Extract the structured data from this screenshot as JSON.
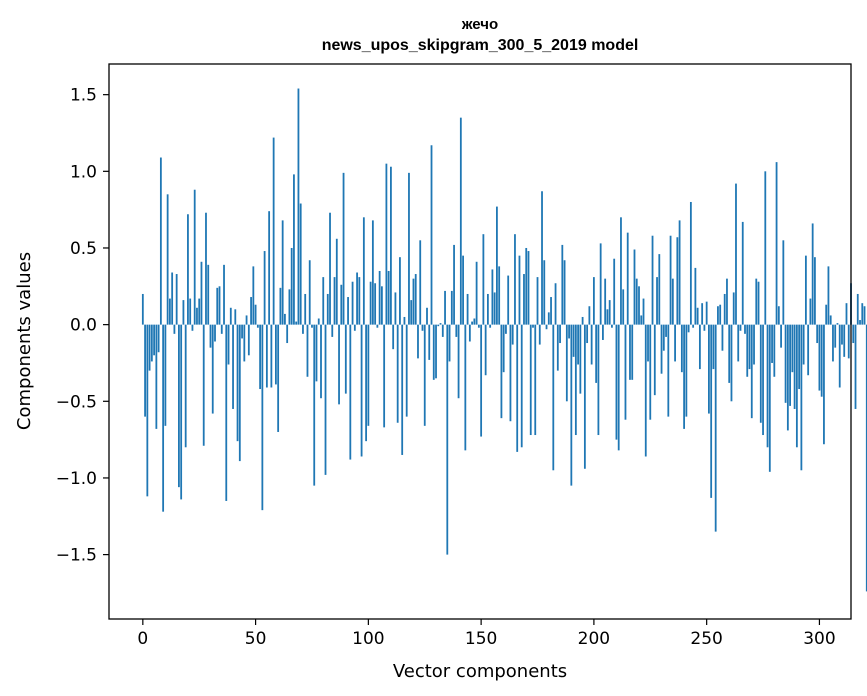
{
  "chart_data": {
    "type": "bar",
    "title": "жечо",
    "subtitle": "news_upos_skipgram_300_5_2019 model",
    "xlabel": "Vector components",
    "ylabel": "Components values",
    "xlim": [
      -15,
      314
    ],
    "ylim": [
      -1.92,
      1.7
    ],
    "xticks": [
      0,
      50,
      100,
      150,
      200,
      250,
      300
    ],
    "xtick_labels": [
      "0",
      "50",
      "100",
      "150",
      "200",
      "250",
      "300"
    ],
    "yticks": [
      -1.5,
      -1.0,
      -0.5,
      0.0,
      0.5,
      1.0,
      1.5
    ],
    "ytick_labels": [
      "−1.5",
      "−1.0",
      "−0.5",
      "0.0",
      "0.5",
      "1.0",
      "1.5"
    ],
    "grid": false,
    "bar_color": "#1f77b4",
    "values": [
      0.2,
      -0.6,
      -1.12,
      -0.3,
      -0.24,
      -0.2,
      -0.68,
      -0.18,
      1.09,
      -1.22,
      -0.66,
      0.85,
      0.17,
      0.34,
      -0.06,
      0.33,
      -1.06,
      -1.14,
      0.16,
      -0.8,
      0.72,
      0.17,
      -0.04,
      0.88,
      0.11,
      0.17,
      0.41,
      -0.79,
      0.73,
      0.39,
      -0.15,
      -0.58,
      -0.11,
      0.24,
      0.25,
      -0.06,
      0.39,
      -1.15,
      -0.26,
      0.11,
      -0.55,
      0.1,
      -0.76,
      -0.89,
      -0.09,
      -0.24,
      0.06,
      -0.2,
      0.18,
      0.38,
      0.13,
      -0.02,
      -0.42,
      -1.21,
      0.48,
      -0.41,
      0.74,
      -0.41,
      1.22,
      -0.39,
      -0.7,
      0.24,
      0.68,
      0.07,
      -0.12,
      0.23,
      0.5,
      0.98,
      0.02,
      1.54,
      0.79,
      -0.06,
      0.2,
      -0.34,
      0.42,
      -0.02,
      -1.05,
      -0.37,
      0.04,
      -0.48,
      0.31,
      -0.98,
      0.2,
      0.73,
      -0.08,
      0.31,
      0.56,
      -0.52,
      0.26,
      0.99,
      -0.45,
      0.18,
      -0.88,
      0.28,
      -0.04,
      0.34,
      0.31,
      -0.86,
      0.7,
      -0.76,
      -0.66,
      0.28,
      0.68,
      0.27,
      -0.02,
      0.35,
      0.25,
      -0.67,
      1.05,
      0.35,
      1.03,
      -0.16,
      0.21,
      -0.64,
      0.44,
      -0.85,
      0.05,
      -0.6,
      0.99,
      0.16,
      0.3,
      0.33,
      -0.22,
      0.55,
      -0.04,
      -0.66,
      0.11,
      -0.23,
      1.17,
      -0.36,
      -0.35,
      -0.01,
      0.01,
      -0.08,
      0.22,
      -1.5,
      -0.24,
      0.22,
      0.52,
      -0.08,
      -0.48,
      1.35,
      0.45,
      -0.82,
      0.2,
      -0.11,
      0.02,
      0.04,
      0.41,
      -0.02,
      -0.73,
      0.59,
      -0.33,
      0.2,
      -0.02,
      0.36,
      0.21,
      0.77,
      0.38,
      -0.61,
      -0.31,
      -0.06,
      0.32,
      -0.63,
      -0.13,
      0.59,
      -0.83,
      0.45,
      -0.8,
      0.33,
      0.5,
      0.48,
      -0.72,
      -0.02,
      -0.72,
      0.31,
      -0.13,
      0.87,
      0.42,
      -0.03,
      0.08,
      0.18,
      -0.95,
      0.27,
      -0.3,
      -0.12,
      0.52,
      0.42,
      -0.5,
      -0.09,
      -1.05,
      -0.21,
      -0.72,
      -0.26,
      -0.45,
      0.05,
      -0.94,
      -0.12,
      0.12,
      -0.26,
      0.31,
      -0.38,
      -0.72,
      0.53,
      -0.1,
      0.3,
      0.1,
      0.16,
      -0.02,
      0.43,
      -0.75,
      -0.82,
      0.7,
      0.23,
      -0.62,
      0.6,
      -0.36,
      -0.36,
      0.49,
      0.3,
      0.25,
      0.06,
      0.17,
      -0.86,
      -0.24,
      -0.62,
      0.58,
      -0.46,
      0.31,
      0.46,
      -0.32,
      -0.17,
      -0.08,
      -0.6,
      0.58,
      0.3,
      -0.24,
      0.57,
      0.68,
      -0.31,
      -0.68,
      -0.6,
      -0.05,
      0.8,
      -0.02,
      0.37,
      0.11,
      -0.29,
      0.14,
      -0.04,
      0.15,
      -0.58,
      -1.13,
      -0.29,
      -1.35,
      0.12,
      0.13,
      -0.17,
      0.2,
      0.3,
      -0.38,
      -0.5,
      0.21,
      0.92,
      -0.24,
      -0.04,
      0.67,
      -0.06,
      -0.34,
      -0.29,
      -0.61,
      -0.26,
      0.3,
      0.28,
      -0.64,
      -0.72,
      1.0,
      -0.8,
      -0.96,
      -0.25,
      -0.34,
      1.06,
      0.12,
      -0.15,
      0.55,
      -0.51,
      -0.69,
      -0.53,
      -0.31,
      -0.55,
      -0.8,
      -0.42,
      -0.95,
      -0.26,
      0.45,
      -0.33,
      0.17,
      0.66,
      0.44,
      -0.12,
      -0.43,
      -0.47,
      -0.78,
      0.13,
      0.38,
      0.06,
      -0.24,
      -0.15,
      0.01,
      -0.41,
      -0.13,
      -0.21,
      0.14,
      -0.22,
      0.27,
      -0.12,
      -0.55,
      0.2,
      0.03,
      0.14,
      0.12,
      -1.74,
      -0.24,
      0.26,
      0.38,
      -0.04
    ]
  }
}
